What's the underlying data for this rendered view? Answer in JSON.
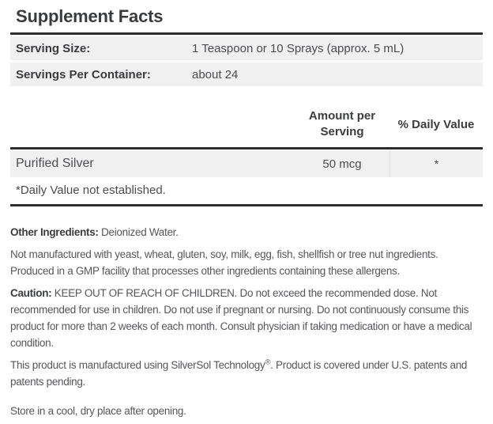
{
  "label": {
    "title": "Supplement Facts",
    "serving_rows": [
      {
        "label": "Serving Size:",
        "value": "1 Teaspoon or 10 Sprays (approx. 5 mL)"
      },
      {
        "label": "Servings Per Container:",
        "value": "about 24"
      }
    ],
    "columns": {
      "amount_line1": "Amount per",
      "amount_line2": "Serving",
      "daily_value": "% Daily Value"
    },
    "ingredients": [
      {
        "name": "Purified Silver",
        "amount": "50 mcg",
        "daily_value": "*"
      }
    ],
    "footnote": "*Daily Value not established.",
    "other_ingredients_label": "Other Ingredients:",
    "other_ingredients_value": " Deionized Water.",
    "allergen_note": "Not manufactured with yeast, wheat, gluten, soy, milk, egg, fish, shellfish or tree nut ingredients.\nProduced in a GMP facility that processes other ingredients containing these allergens.",
    "caution_label": "Caution:",
    "caution_text": " KEEP OUT OF REACH OF CHILDREN. Do not exceed the recommended dose. Not\nrecommended for use in children. Do not use if pregnant or nursing. Do not continuously consume this\nproduct for more than 2 weeks of each month. Consult physician if taking medication or have a medical\ncondition.",
    "tech_note_pre": "This product is manufactured using SilverSol Technology",
    "tech_note_reg": "®",
    "tech_note_post": ". Product is covered under U.S. patents and\npatents pending.",
    "storage_note": "Store in a cool, dry place after opening.",
    "colors": {
      "rule": "#2d2e30",
      "row_background": "#f0f0f1",
      "heading_text": "#3b3c3e",
      "body_text": "#56575b"
    }
  }
}
